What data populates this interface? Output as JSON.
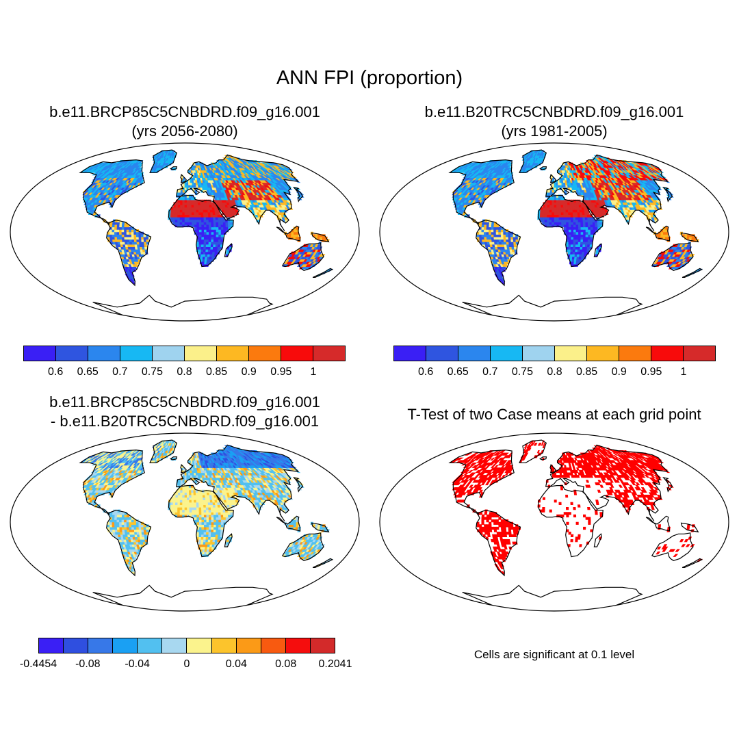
{
  "title": "ANN FPI (proportion)",
  "panels": [
    {
      "id": "rcp85",
      "title_lines": [
        "b.e11.BRCP85C5CNBDRD.f09_g16.001",
        "(yrs 2056-2080)"
      ]
    },
    {
      "id": "20tr",
      "title_lines": [
        "b.e11.B20TRC5CNBDRD.f09_g16.001",
        "(yrs 1981-2005)"
      ]
    },
    {
      "id": "diff",
      "title_lines": [
        "b.e11.BRCP85C5CNBDRD.f09_g16.001",
        "- b.e11.B20TRC5CNBDRD.f09_g16.001"
      ]
    },
    {
      "id": "ttest",
      "title_lines": [
        "T-Test of two Case means at each grid point"
      ]
    }
  ],
  "colorbars": {
    "absolute": {
      "colors": [
        "#3a1ff5",
        "#2f55e0",
        "#2b86ee",
        "#17b8f3",
        "#9fd3ef",
        "#fbf08a",
        "#fdb822",
        "#fb7a0e",
        "#f80b0b",
        "#d62a2a"
      ],
      "labels": [
        "0.6",
        "0.65",
        "0.7",
        "0.75",
        "0.8",
        "0.85",
        "0.9",
        "0.95",
        "1"
      ]
    },
    "difference": {
      "colors": [
        "#3a1ff5",
        "#2f4fe0",
        "#3778e8",
        "#1aa0f3",
        "#52c0f0",
        "#a8d8f0",
        "#fbf38d",
        "#fcc42c",
        "#fb9a17",
        "#f85a10",
        "#f50d0d",
        "#d32a2a"
      ],
      "labels": [
        "-0.4454",
        "-0.08",
        "-0.04",
        "0",
        "0.04",
        "0.08",
        "0.2041"
      ]
    }
  },
  "significance_note": "Cells are significant at 0.1 level"
}
